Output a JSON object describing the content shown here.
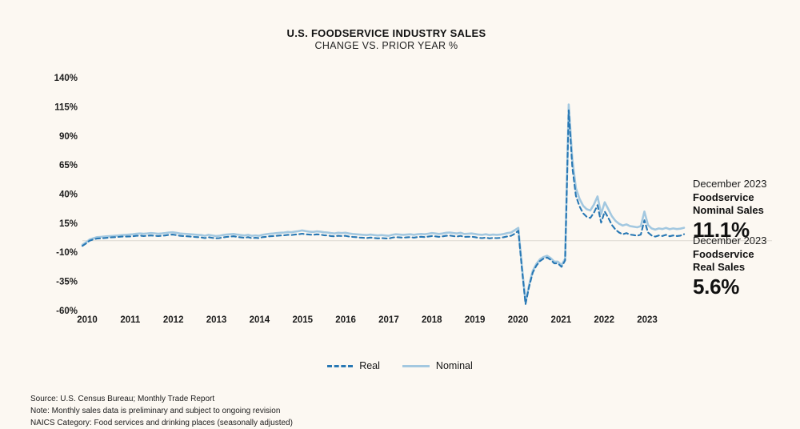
{
  "title": {
    "line1": "U.S. FOODSERVICE INDUSTRY SALES",
    "line2": "CHANGE VS. PRIOR YEAR %"
  },
  "colors": {
    "background": "#fcf8f2",
    "nominal_line": "#a3c8e0",
    "real_line": "#2878b4",
    "zero_line": "#ddd9d2",
    "text": "#1a1a1a"
  },
  "chart_data": {
    "type": "line",
    "x_monthly_start": "2010-01",
    "x_monthly_end": "2023-12",
    "x_tick_labels": [
      "2010",
      "2011",
      "2012",
      "2013",
      "2014",
      "2015",
      "2016",
      "2017",
      "2018",
      "2019",
      "2020",
      "2021",
      "2022",
      "2023"
    ],
    "y_ticks": [
      140,
      115,
      90,
      65,
      40,
      15,
      -10,
      -35,
      -60
    ],
    "y_tick_suffix": "%",
    "ylim": [
      -60,
      140
    ],
    "grid": false,
    "zero_line": true,
    "legend_position": "bottom-center",
    "series": [
      {
        "name": "Nominal",
        "style": "solid",
        "color": "#a3c8e0",
        "values": [
          -3.5,
          -1.5,
          1.0,
          2.0,
          3.0,
          3.2,
          3.5,
          3.8,
          4.0,
          4.2,
          4.5,
          4.8,
          5.0,
          5.2,
          5.5,
          6.0,
          6.2,
          6.0,
          6.2,
          6.5,
          6.3,
          6.0,
          6.2,
          6.5,
          7.0,
          7.2,
          6.8,
          6.2,
          6.0,
          5.8,
          5.5,
          5.2,
          5.0,
          4.8,
          4.2,
          5.0,
          4.5,
          4.0,
          4.2,
          4.8,
          5.2,
          5.5,
          5.8,
          5.2,
          4.8,
          4.5,
          5.0,
          4.2,
          4.5,
          4.2,
          5.0,
          5.5,
          6.0,
          6.2,
          6.5,
          6.8,
          7.0,
          7.5,
          7.2,
          7.8,
          8.2,
          8.8,
          8.2,
          7.8,
          7.5,
          8.0,
          7.8,
          7.2,
          7.0,
          6.5,
          6.2,
          6.8,
          6.5,
          6.8,
          6.2,
          5.8,
          5.5,
          5.2,
          5.0,
          4.8,
          5.2,
          4.8,
          4.5,
          4.8,
          4.5,
          4.2,
          5.0,
          5.5,
          5.2,
          5.0,
          5.2,
          5.5,
          5.0,
          5.5,
          5.8,
          5.5,
          6.0,
          6.5,
          6.2,
          5.8,
          6.2,
          6.8,
          7.0,
          6.5,
          6.2,
          6.8,
          5.8,
          6.0,
          6.2,
          5.8,
          5.2,
          5.0,
          5.5,
          4.8,
          5.2,
          5.0,
          5.2,
          5.8,
          6.5,
          7.0,
          9.0,
          11.0,
          -22.0,
          -53.0,
          -38.0,
          -26.0,
          -20.0,
          -16.0,
          -14.0,
          -13.0,
          -15.0,
          -18.0,
          -18.0,
          -21.0,
          -15.5,
          117.0,
          70.0,
          45.0,
          36.0,
          30.0,
          27.0,
          26.0,
          31.0,
          38.0,
          23.0,
          33.0,
          27.0,
          21.0,
          17.0,
          14.5,
          13.0,
          14.0,
          12.5,
          12.0,
          11.5,
          12.5,
          25.0,
          13.5,
          10.5,
          9.5,
          10.5,
          10.0,
          11.0,
          9.8,
          10.5,
          10.0,
          10.3,
          11.1
        ]
      },
      {
        "name": "Real",
        "style": "dashed",
        "color": "#2878b4",
        "values": [
          -4.5,
          -2.5,
          0.0,
          1.0,
          1.8,
          2.0,
          2.2,
          2.5,
          2.8,
          3.0,
          3.2,
          3.5,
          3.5,
          3.6,
          3.8,
          4.2,
          4.3,
          4.0,
          4.2,
          4.5,
          4.2,
          4.0,
          4.2,
          4.5,
          5.0,
          5.2,
          4.8,
          4.2,
          4.0,
          3.8,
          3.5,
          3.2,
          3.0,
          2.8,
          2.2,
          3.0,
          2.5,
          2.0,
          2.2,
          2.8,
          3.2,
          3.5,
          3.8,
          3.2,
          2.8,
          2.5,
          3.0,
          2.2,
          2.5,
          2.2,
          3.0,
          3.3,
          3.8,
          4.0,
          4.2,
          4.5,
          4.6,
          5.0,
          4.8,
          5.2,
          5.5,
          6.0,
          5.5,
          5.2,
          5.0,
          5.4,
          5.2,
          4.7,
          4.5,
          4.0,
          3.8,
          4.2,
          4.0,
          4.2,
          3.6,
          3.2,
          3.0,
          2.7,
          2.5,
          2.3,
          2.7,
          2.3,
          2.0,
          2.3,
          2.0,
          1.8,
          2.6,
          3.1,
          2.8,
          2.6,
          2.8,
          3.1,
          2.6,
          3.1,
          3.4,
          3.1,
          3.5,
          4.0,
          3.7,
          3.3,
          3.7,
          4.2,
          4.4,
          3.9,
          3.6,
          4.2,
          3.2,
          3.4,
          3.4,
          3.0,
          2.4,
          2.2,
          2.7,
          2.0,
          2.4,
          2.2,
          2.4,
          3.0,
          3.7,
          4.2,
          6.0,
          8.5,
          -24.0,
          -54.5,
          -39.5,
          -27.5,
          -21.5,
          -17.5,
          -15.5,
          -14.5,
          -16.5,
          -19.5,
          -19.5,
          -22.5,
          -17.0,
          112.0,
          63.0,
          38.5,
          29.5,
          23.5,
          20.5,
          19.5,
          24.0,
          30.5,
          15.5,
          25.0,
          19.5,
          13.5,
          9.5,
          7.0,
          5.5,
          6.5,
          5.2,
          4.8,
          4.2,
          5.2,
          17.5,
          7.0,
          4.5,
          3.5,
          4.5,
          4.0,
          5.0,
          3.8,
          4.5,
          4.0,
          4.3,
          5.6
        ]
      }
    ]
  },
  "annotations": {
    "nominal": {
      "period": "December 2023",
      "line2": "Foodservice",
      "line3": "Nominal Sales",
      "value": "11.1%"
    },
    "real": {
      "period": "December 2023",
      "line2": "Foodservice",
      "line3": "Real Sales",
      "value": "5.6%"
    }
  },
  "legend": {
    "real_label": "Real",
    "nominal_label": "Nominal"
  },
  "footer": {
    "source": "Source: U.S. Census Bureau; Monthly Trade Report",
    "note": "Note: Monthly sales data is preliminary and subject to ongoing revision",
    "naics": "NAICS Category: Food services and drinking places (seasonally adjusted)"
  }
}
